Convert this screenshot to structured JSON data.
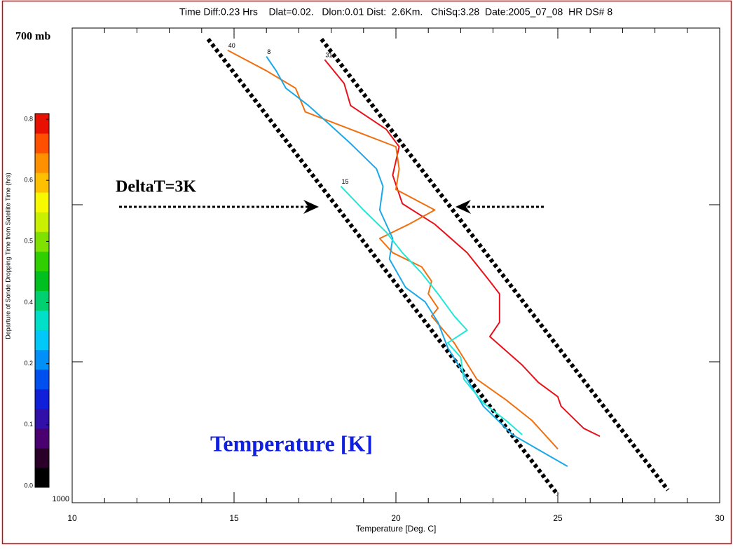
{
  "chart_data": {
    "type": "line",
    "title": "Time Diff:0.23 Hrs    Dlat=0.02.   Dlon:0.01 Dist:  2.6Km.   ChiSq:3.28  Date:2005_07_08  HR DS# 8",
    "xlabel": "Temperature [Deg. C]",
    "xlim": [
      10,
      30
    ],
    "xticks": [
      10,
      15,
      20,
      25,
      30
    ],
    "ylim": [
      1000,
      700
    ],
    "yticks": [
      {
        "value": 1000,
        "label": "1000"
      },
      {
        "value": 700,
        "label": "700 mb"
      }
    ],
    "series": [
      {
        "name": "31",
        "color": "#e8101a",
        "x": [
          17.8,
          18.4,
          18.6,
          19.7,
          20.1,
          19.9,
          20.2,
          21.2,
          22.2,
          22.9,
          23.2,
          23.2,
          22.9,
          23.9,
          24.4,
          25.0,
          25.1,
          25.8,
          26.3
        ],
        "y": [
          720,
          735,
          749,
          764,
          775,
          793,
          811,
          824,
          842,
          860,
          868,
          886,
          895,
          913,
          924,
          933,
          939,
          953,
          958
        ]
      },
      {
        "name": "40",
        "color": "#f07010",
        "x": [
          14.8,
          16.0,
          16.9,
          17.2,
          18.6,
          20.0,
          20.1,
          20.0,
          21.2,
          20.4,
          19.5,
          19.9,
          20.8,
          21.1,
          21.0,
          21.3,
          21.1,
          21.8,
          22.5,
          23.4,
          24.2,
          25.0
        ],
        "y": [
          714,
          727,
          738,
          753,
          764,
          775,
          789,
          802,
          815,
          824,
          833,
          842,
          851,
          860,
          868,
          877,
          882,
          899,
          922,
          935,
          948,
          966
        ]
      },
      {
        "name": "8",
        "color": "#1aa8e8",
        "x": [
          16.0,
          16.3,
          16.6,
          17.3,
          17.9,
          18.6,
          19.4,
          19.6,
          19.5,
          19.9,
          19.8,
          20.3,
          20.9,
          21.3,
          21.6,
          22.2,
          22.7,
          23.6,
          24.7,
          25.3
        ],
        "y": [
          718,
          727,
          738,
          749,
          760,
          773,
          789,
          800,
          815,
          833,
          846,
          864,
          873,
          886,
          902,
          922,
          939,
          957,
          970,
          977
        ]
      },
      {
        "name": "15",
        "color": "#20e8d8",
        "x": [
          18.3,
          19.0,
          19.7,
          20.2,
          20.8,
          21.3,
          21.8,
          22.2,
          21.6,
          22.0,
          22.1,
          22.7,
          23.4,
          23.9
        ],
        "y": [
          800,
          815,
          829,
          842,
          855,
          868,
          882,
          891,
          899,
          908,
          922,
          937,
          948,
          957
        ]
      }
    ],
    "reference_lines": [
      {
        "x": [
          14.2,
          25.0
        ],
        "y": [
          707,
          995
        ]
      },
      {
        "x": [
          17.7,
          28.4
        ],
        "y": [
          707,
          992
        ]
      }
    ],
    "annotations": [
      "DeltaT=3K",
      "Temperature [K]"
    ],
    "colorbar": {
      "label": "Departure of Sonde Dropping Time from Satellite Time (hrs)",
      "tick_labels": [
        "0.0",
        "0.1",
        "0.2",
        "0.4",
        "0.5",
        "0.6",
        "0.8"
      ],
      "colors": [
        "#000000",
        "#2a0028",
        "#4a0070",
        "#3010a8",
        "#1020d8",
        "#0050f0",
        "#0090f8",
        "#00c8f8",
        "#00e0c8",
        "#00d070",
        "#00c020",
        "#30d000",
        "#80e000",
        "#c8f000",
        "#f8f800",
        "#ffc000",
        "#ff9000",
        "#ff5000",
        "#e81000"
      ]
    }
  }
}
